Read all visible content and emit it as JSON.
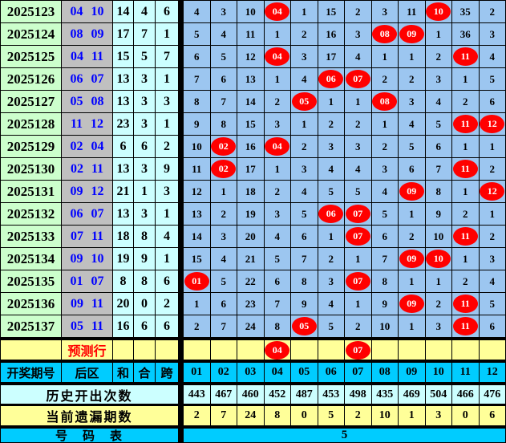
{
  "colors": {
    "period_bg": "#ccffcc",
    "back_zone_bg": "#c0c0c0",
    "stat_bg": "#ccffff",
    "grid_bg": "#9cc6f0",
    "hit_red": "#ff0000",
    "yellow_bg": "#ffff99",
    "cyan_bg": "#00ccff",
    "blue_text": "#0000ff"
  },
  "chart_data": {
    "type": "table",
    "left_columns": [
      "开奖期号",
      "后区",
      "和",
      "合",
      "跨"
    ],
    "ball_columns": [
      "01",
      "02",
      "03",
      "04",
      "05",
      "06",
      "07",
      "08",
      "09",
      "10",
      "11",
      "12"
    ],
    "rows": [
      {
        "period": "2025123",
        "back": "04 10",
        "sum": "14",
        "combine": "4",
        "span": "6",
        "cells": [
          "4",
          "3",
          "10",
          "04",
          "1",
          "15",
          "2",
          "3",
          "11",
          "10",
          "35",
          "2"
        ],
        "hits": [
          4,
          10
        ]
      },
      {
        "period": "2025124",
        "back": "08 09",
        "sum": "17",
        "combine": "7",
        "span": "1",
        "cells": [
          "5",
          "4",
          "11",
          "1",
          "2",
          "16",
          "3",
          "08",
          "09",
          "1",
          "36",
          "3"
        ],
        "hits": [
          8,
          9
        ]
      },
      {
        "period": "2025125",
        "back": "04 11",
        "sum": "15",
        "combine": "5",
        "span": "7",
        "cells": [
          "6",
          "5",
          "12",
          "04",
          "3",
          "17",
          "4",
          "1",
          "1",
          "2",
          "11",
          "4"
        ],
        "hits": [
          4,
          11
        ]
      },
      {
        "period": "2025126",
        "back": "06 07",
        "sum": "13",
        "combine": "3",
        "span": "1",
        "cells": [
          "7",
          "6",
          "13",
          "1",
          "4",
          "06",
          "07",
          "2",
          "2",
          "3",
          "1",
          "5"
        ],
        "hits": [
          6,
          7
        ]
      },
      {
        "period": "2025127",
        "back": "05 08",
        "sum": "13",
        "combine": "3",
        "span": "3",
        "cells": [
          "8",
          "7",
          "14",
          "2",
          "05",
          "1",
          "1",
          "08",
          "3",
          "4",
          "2",
          "6"
        ],
        "hits": [
          5,
          8
        ]
      },
      {
        "period": "2025128",
        "back": "11 12",
        "sum": "23",
        "combine": "3",
        "span": "1",
        "cells": [
          "9",
          "8",
          "15",
          "3",
          "1",
          "2",
          "2",
          "1",
          "4",
          "5",
          "11",
          "12"
        ],
        "hits": [
          11,
          12
        ]
      },
      {
        "period": "2025129",
        "back": "02 04",
        "sum": "6",
        "combine": "6",
        "span": "2",
        "cells": [
          "10",
          "02",
          "16",
          "04",
          "2",
          "3",
          "3",
          "2",
          "5",
          "6",
          "1",
          "1"
        ],
        "hits": [
          2,
          4
        ]
      },
      {
        "period": "2025130",
        "back": "02 11",
        "sum": "13",
        "combine": "3",
        "span": "9",
        "cells": [
          "11",
          "02",
          "17",
          "1",
          "3",
          "4",
          "4",
          "3",
          "6",
          "7",
          "11",
          "2"
        ],
        "hits": [
          2,
          11
        ]
      },
      {
        "period": "2025131",
        "back": "09 12",
        "sum": "21",
        "combine": "1",
        "span": "3",
        "cells": [
          "12",
          "1",
          "18",
          "2",
          "4",
          "5",
          "5",
          "4",
          "09",
          "8",
          "1",
          "12"
        ],
        "hits": [
          9,
          12
        ]
      },
      {
        "period": "2025132",
        "back": "06 07",
        "sum": "13",
        "combine": "3",
        "span": "1",
        "cells": [
          "13",
          "2",
          "19",
          "3",
          "5",
          "06",
          "07",
          "5",
          "1",
          "9",
          "2",
          "1"
        ],
        "hits": [
          6,
          7
        ]
      },
      {
        "period": "2025133",
        "back": "07 11",
        "sum": "18",
        "combine": "8",
        "span": "4",
        "cells": [
          "14",
          "3",
          "20",
          "4",
          "6",
          "1",
          "07",
          "6",
          "2",
          "10",
          "11",
          "2"
        ],
        "hits": [
          7,
          11
        ]
      },
      {
        "period": "2025134",
        "back": "09 10",
        "sum": "19",
        "combine": "9",
        "span": "1",
        "cells": [
          "15",
          "4",
          "21",
          "5",
          "7",
          "2",
          "1",
          "7",
          "09",
          "10",
          "1",
          "3"
        ],
        "hits": [
          9,
          10
        ]
      },
      {
        "period": "2025135",
        "back": "01 07",
        "sum": "8",
        "combine": "8",
        "span": "6",
        "cells": [
          "01",
          "5",
          "22",
          "6",
          "8",
          "3",
          "07",
          "8",
          "1",
          "1",
          "2",
          "4"
        ],
        "hits": [
          1,
          7
        ]
      },
      {
        "period": "2025136",
        "back": "09 11",
        "sum": "20",
        "combine": "0",
        "span": "2",
        "cells": [
          "1",
          "6",
          "23",
          "7",
          "9",
          "4",
          "1",
          "9",
          "09",
          "2",
          "11",
          "5"
        ],
        "hits": [
          9,
          11
        ]
      },
      {
        "period": "2025137",
        "back": "05 11",
        "sum": "16",
        "combine": "6",
        "span": "6",
        "cells": [
          "2",
          "7",
          "24",
          "8",
          "05",
          "5",
          "2",
          "10",
          "1",
          "3",
          "11",
          "6"
        ],
        "hits": [
          5,
          11
        ]
      }
    ],
    "prediction_row": {
      "label": "预测行",
      "hit_columns": [
        4,
        7
      ],
      "hit_labels": [
        "04",
        "07"
      ]
    },
    "history_label": "历史开出次数",
    "history_counts": [
      "443",
      "467",
      "460",
      "452",
      "487",
      "453",
      "498",
      "435",
      "469",
      "504",
      "466",
      "476"
    ],
    "miss_label": "当前遗漏期数",
    "current_miss": [
      "2",
      "7",
      "24",
      "8",
      "0",
      "5",
      "2",
      "10",
      "1",
      "3",
      "0",
      "6"
    ],
    "footer_label": "号　码　表",
    "footer_value": "5"
  }
}
